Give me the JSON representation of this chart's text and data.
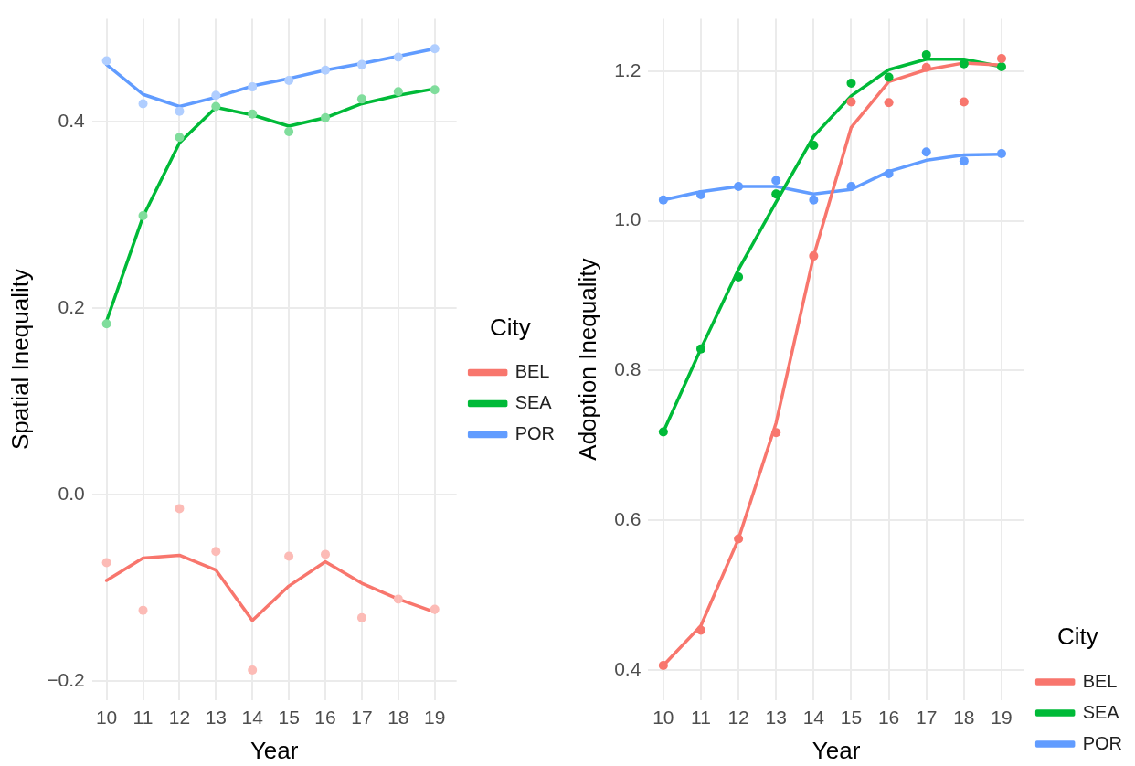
{
  "chart_data": [
    {
      "type": "line",
      "xlabel": "Year",
      "ylabel": "Spatial Inequality",
      "legend_title": "City",
      "legend": "right",
      "grid": true,
      "x": [
        10,
        11,
        12,
        13,
        14,
        15,
        16,
        17,
        18,
        19
      ],
      "xlim": [
        9.6,
        19.6
      ],
      "xticks": [
        10,
        11,
        12,
        13,
        14,
        15,
        16,
        17,
        18,
        19
      ],
      "ylim": [
        -0.22,
        0.51
      ],
      "yticks": [
        {
          "value": -0.2,
          "label": "−0.2"
        },
        {
          "value": 0,
          "label": "0.0"
        },
        0.2,
        0.4
      ],
      "series": [
        {
          "name": "BEL",
          "marker": "none",
          "color": "#f8766d",
          "values": [
            -0.092,
            -0.068,
            -0.065,
            -0.081,
            -0.135,
            -0.098,
            -0.072,
            -0.095,
            -0.112,
            -0.126
          ]
        },
        {
          "name": "SEA",
          "marker": "none",
          "color": "#00ba38",
          "values": [
            0.186,
            0.298,
            0.377,
            0.415,
            0.407,
            0.395,
            0.404,
            0.419,
            0.428,
            0.435
          ]
        },
        {
          "name": "POR",
          "marker": "none",
          "color": "#619cff",
          "values": [
            0.461,
            0.429,
            0.416,
            0.426,
            0.438,
            0.446,
            0.455,
            0.462,
            0.47,
            0.478
          ]
        },
        {
          "type": "scatter",
          "marker": "circle",
          "color": "#fcbbb6",
          "values": [
            -0.073,
            -0.124,
            -0.015,
            -0.061,
            -0.188,
            -0.066,
            -0.064,
            -0.132,
            -0.112,
            -0.123
          ]
        },
        {
          "type": "scatter",
          "marker": "circle",
          "color": "#80dd9c",
          "values": [
            0.183,
            0.299,
            0.383,
            0.416,
            0.408,
            0.389,
            0.404,
            0.424,
            0.432,
            0.434
          ]
        },
        {
          "type": "scatter",
          "marker": "circle",
          "color": "#b0ceff",
          "values": [
            0.465,
            0.419,
            0.411,
            0.428,
            0.437,
            0.444,
            0.455,
            0.461,
            0.469,
            0.478
          ]
        }
      ]
    },
    {
      "type": "line",
      "xlabel": "Year",
      "ylabel": "Adoption Inequality",
      "legend_title": "City",
      "legend": "bottom right",
      "grid": true,
      "x": [
        10,
        11,
        12,
        13,
        14,
        15,
        16,
        17,
        18,
        19
      ],
      "xlim": [
        9.6,
        19.6
      ],
      "xticks": [
        10,
        11,
        12,
        13,
        14,
        15,
        16,
        17,
        18,
        19
      ],
      "ylim": [
        0.36,
        1.27
      ],
      "yticks": [
        0.4,
        0.6,
        0.8,
        {
          "value": 1,
          "label": "1.0"
        },
        1.2
      ],
      "series": [
        {
          "name": "BEL",
          "marker": "none",
          "color": "#f8766d",
          "values": [
            0.406,
            0.459,
            0.575,
            0.73,
            0.953,
            1.125,
            1.186,
            1.202,
            1.211,
            1.208
          ]
        },
        {
          "name": "SEA",
          "marker": "none",
          "color": "#00ba38",
          "values": [
            0.718,
            0.829,
            0.935,
            1.025,
            1.113,
            1.167,
            1.202,
            1.216,
            1.216,
            1.206
          ]
        },
        {
          "name": "POR",
          "marker": "none",
          "color": "#619cff",
          "values": [
            1.028,
            1.039,
            1.046,
            1.046,
            1.036,
            1.042,
            1.066,
            1.081,
            1.088,
            1.089
          ]
        },
        {
          "type": "scatter",
          "marker": "circle",
          "color": "#f8766d",
          "values": [
            0.406,
            0.453,
            0.575,
            0.717,
            0.953,
            1.159,
            1.158,
            1.205,
            1.159,
            1.217
          ]
        },
        {
          "type": "scatter",
          "marker": "circle",
          "color": "#00ba38",
          "values": [
            0.718,
            0.829,
            0.925,
            1.036,
            1.101,
            1.184,
            1.192,
            1.222,
            1.21,
            1.206
          ]
        },
        {
          "type": "scatter",
          "marker": "circle",
          "color": "#619cff",
          "values": [
            1.028,
            1.035,
            1.046,
            1.054,
            1.028,
            1.046,
            1.063,
            1.092,
            1.08,
            1.09
          ]
        }
      ]
    }
  ]
}
